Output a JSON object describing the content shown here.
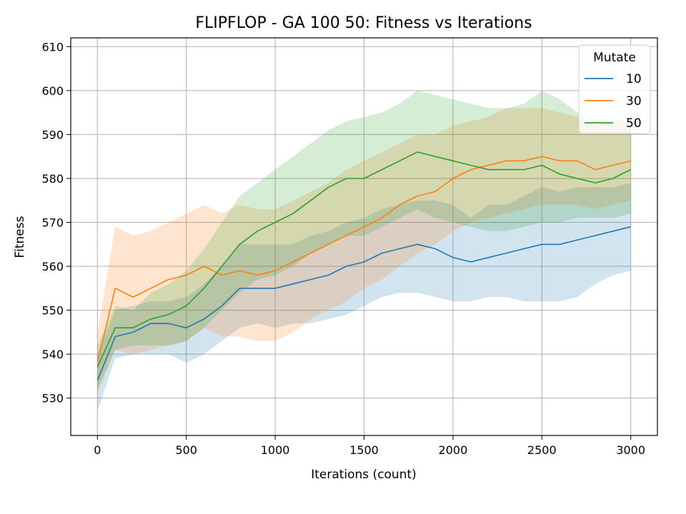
{
  "chart_data": {
    "type": "line",
    "title": "FLIPFLOP - GA 100 50: Fitness vs Iterations",
    "xlabel": "Iterations (count)",
    "ylabel": "Fitness",
    "xlim": [
      -150,
      3150
    ],
    "ylim": [
      521.5,
      612
    ],
    "xticks": [
      0,
      500,
      1000,
      1500,
      2000,
      2500,
      3000
    ],
    "xtick_labels": [
      "0",
      "500",
      "1000",
      "1500",
      "2000",
      "2500",
      "3000"
    ],
    "yticks": [
      530,
      540,
      550,
      560,
      570,
      580,
      590,
      600,
      610
    ],
    "ytick_labels": [
      "530",
      "540",
      "550",
      "560",
      "570",
      "580",
      "590",
      "600",
      "610"
    ],
    "grid": true,
    "legend": {
      "title": "Mutate",
      "placement": "top-right"
    },
    "x": [
      0,
      100,
      200,
      300,
      400,
      500,
      600,
      700,
      800,
      900,
      1000,
      1100,
      1200,
      1300,
      1400,
      1500,
      1600,
      1700,
      1800,
      1900,
      2000,
      2100,
      2200,
      2300,
      2400,
      2500,
      2600,
      2700,
      2800,
      2900,
      3000
    ],
    "series": [
      {
        "name": "10",
        "color": "#1f77b4",
        "values": [
          534,
          544,
          545,
          547,
          547,
          546,
          548,
          551,
          555,
          555,
          555,
          556,
          557,
          558,
          560,
          561,
          563,
          564,
          565,
          564,
          562,
          561,
          562,
          563,
          564,
          565,
          565,
          566,
          567,
          568,
          569
        ],
        "lower": [
          527,
          539,
          540,
          540,
          540,
          538,
          540,
          543,
          546,
          547,
          546,
          547,
          547,
          548,
          549,
          551,
          553,
          554,
          554,
          553,
          552,
          552,
          553,
          553,
          552,
          552,
          552,
          553,
          556,
          558,
          559
        ],
        "upper": [
          540,
          550,
          551,
          552,
          552,
          553,
          556,
          560,
          565,
          565,
          565,
          565,
          567,
          568,
          570,
          571,
          573,
          574,
          575,
          575,
          574,
          571,
          574,
          574,
          576,
          578,
          577,
          578,
          578,
          578,
          579
        ]
      },
      {
        "name": "30",
        "color": "#ff7f0e",
        "values": [
          538,
          555,
          553,
          555,
          557,
          558,
          560,
          558,
          559,
          558,
          559,
          561,
          563,
          565,
          567,
          569,
          571,
          574,
          576,
          577,
          580,
          582,
          583,
          584,
          584,
          585,
          584,
          584,
          582,
          583,
          584
        ],
        "lower": [
          531,
          541,
          540,
          541,
          542,
          543,
          546,
          544,
          544,
          543,
          543,
          545,
          548,
          550,
          552,
          555,
          557,
          560,
          563,
          565,
          568,
          570,
          571,
          572,
          573,
          574,
          574,
          574,
          573,
          574,
          575
        ],
        "upper": [
          545,
          569,
          567,
          568,
          570,
          572,
          574,
          572,
          574,
          573,
          573,
          575,
          577,
          579,
          582,
          584,
          586,
          588,
          590,
          590,
          592,
          593,
          594,
          596,
          596,
          596,
          595,
          594,
          592,
          593,
          593
        ]
      },
      {
        "name": "50",
        "color": "#2ca02c",
        "values": [
          537,
          546,
          546,
          548,
          549,
          551,
          555,
          560,
          565,
          568,
          570,
          572,
          575,
          578,
          580,
          580,
          582,
          584,
          586,
          585,
          584,
          583,
          582,
          582,
          582,
          583,
          581,
          580,
          579,
          580,
          582
        ],
        "lower": [
          532,
          541,
          542,
          542,
          542,
          543,
          546,
          550,
          554,
          557,
          558,
          560,
          563,
          565,
          567,
          567,
          569,
          571,
          573,
          571,
          570,
          569,
          568,
          568,
          569,
          570,
          570,
          571,
          571,
          571,
          572
        ],
        "upper": [
          542,
          551,
          550,
          554,
          556,
          559,
          564,
          570,
          576,
          579,
          582,
          585,
          588,
          591,
          593,
          594,
          595,
          597,
          600,
          599,
          598,
          597,
          596,
          596,
          597,
          600,
          598,
          595,
          592,
          593,
          594
        ]
      }
    ]
  }
}
